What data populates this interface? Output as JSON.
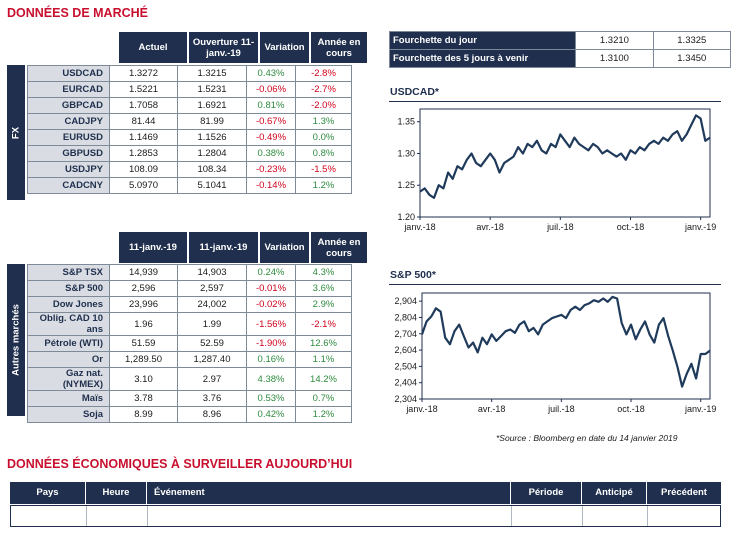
{
  "market_title": "DONNÉES DE MARCHÉ",
  "fx": {
    "side_label": "FX",
    "headers": [
      "Actuel",
      "Ouverture 11-janv.-19",
      "Variation",
      "Année en cours"
    ],
    "rows": [
      {
        "label": "USDCAD",
        "actual": "1.3272",
        "open": "1.3215",
        "variation": "0.43%",
        "ytd": "-2.8%"
      },
      {
        "label": "EURCAD",
        "actual": "1.5221",
        "open": "1.5231",
        "variation": "-0.06%",
        "ytd": "-2.7%"
      },
      {
        "label": "GBPCAD",
        "actual": "1.7058",
        "open": "1.6921",
        "variation": "0.81%",
        "ytd": "-2.0%"
      },
      {
        "label": "CADJPY",
        "actual": "81.44",
        "open": "81.99",
        "variation": "-0.67%",
        "ytd": "1.3%"
      },
      {
        "label": "EURUSD",
        "actual": "1.1469",
        "open": "1.1526",
        "variation": "-0.49%",
        "ytd": "0.0%"
      },
      {
        "label": "GBPUSD",
        "actual": "1.2853",
        "open": "1.2804",
        "variation": "0.38%",
        "ytd": "0.8%"
      },
      {
        "label": "USDJPY",
        "actual": "108.09",
        "open": "108.34",
        "variation": "-0.23%",
        "ytd": "-1.5%"
      },
      {
        "label": "CADCNY",
        "actual": "5.0970",
        "open": "5.1041",
        "variation": "-0.14%",
        "ytd": "1.2%"
      }
    ]
  },
  "markets": {
    "side_label": "Autres marchés",
    "headers": [
      "11-janv.-19",
      "11-janv.-19",
      "Variation",
      "Année en cours"
    ],
    "rows": [
      {
        "label": "S&P TSX",
        "actual": "14,939",
        "open": "14,903",
        "variation": "0.24%",
        "ytd": "4.3%"
      },
      {
        "label": "S&P 500",
        "actual": "2,596",
        "open": "2,597",
        "variation": "-0.01%",
        "ytd": "3.6%"
      },
      {
        "label": "Dow Jones",
        "actual": "23,996",
        "open": "24,002",
        "variation": "-0.02%",
        "ytd": "2.9%"
      },
      {
        "label": "Oblig. CAD 10 ans",
        "actual": "1.96",
        "open": "1.99",
        "variation": "-1.56%",
        "ytd": "-2.1%"
      },
      {
        "label": "Pétrole (WTI)",
        "actual": "51.59",
        "open": "52.59",
        "variation": "-1.90%",
        "ytd": "12.6%"
      },
      {
        "label": "Or",
        "actual": "1,289.50",
        "open": "1,287.40",
        "variation": "0.16%",
        "ytd": "1.1%"
      },
      {
        "label": "Gaz nat. (NYMEX)",
        "actual": "3.10",
        "open": "2.97",
        "variation": "4.38%",
        "ytd": "14.2%"
      },
      {
        "label": "Maïs",
        "actual": "3.78",
        "open": "3.76",
        "variation": "0.53%",
        "ytd": "0.7%"
      },
      {
        "label": "Soja",
        "actual": "8.99",
        "open": "8.96",
        "variation": "0.42%",
        "ytd": "1.2%"
      }
    ]
  },
  "range": {
    "rows": [
      {
        "label": "Fourchette du jour",
        "low": "1.3210",
        "high": "1.3325"
      },
      {
        "label": "Fourchette des 5 jours à venir",
        "low": "1.3100",
        "high": "1.3450"
      }
    ]
  },
  "chart_data": [
    {
      "type": "line",
      "title": "USDCAD*",
      "x_ticks": [
        "janv.-18",
        "avr.-18",
        "juil.-18",
        "oct.-18",
        "janv.-19"
      ],
      "y_ticks": [
        "1.35",
        "1.30",
        "1.25",
        "1.20"
      ],
      "ylim": [
        1.2,
        1.37
      ],
      "x_range": [
        0,
        12.4
      ],
      "color": "#1f3a5a",
      "x": [
        0,
        0.2,
        0.4,
        0.6,
        0.8,
        1.0,
        1.2,
        1.4,
        1.6,
        1.8,
        2.0,
        2.2,
        2.4,
        2.6,
        2.8,
        3.0,
        3.2,
        3.4,
        3.6,
        3.8,
        4.0,
        4.2,
        4.4,
        4.6,
        4.8,
        5.0,
        5.2,
        5.4,
        5.6,
        5.8,
        6.0,
        6.2,
        6.4,
        6.6,
        6.8,
        7.0,
        7.2,
        7.4,
        7.6,
        7.8,
        8.0,
        8.2,
        8.4,
        8.6,
        8.8,
        9.0,
        9.2,
        9.4,
        9.6,
        9.8,
        10.0,
        10.2,
        10.4,
        10.6,
        10.8,
        11.0,
        11.2,
        11.4,
        11.6,
        11.8,
        12.0,
        12.2,
        12.4
      ],
      "values": [
        1.24,
        1.245,
        1.235,
        1.23,
        1.25,
        1.245,
        1.27,
        1.26,
        1.28,
        1.275,
        1.29,
        1.3,
        1.285,
        1.28,
        1.29,
        1.3,
        1.29,
        1.27,
        1.285,
        1.29,
        1.295,
        1.31,
        1.3,
        1.315,
        1.31,
        1.32,
        1.305,
        1.3,
        1.315,
        1.31,
        1.33,
        1.32,
        1.31,
        1.325,
        1.315,
        1.31,
        1.305,
        1.315,
        1.31,
        1.3,
        1.305,
        1.3,
        1.295,
        1.3,
        1.29,
        1.305,
        1.3,
        1.31,
        1.305,
        1.315,
        1.32,
        1.315,
        1.325,
        1.32,
        1.33,
        1.335,
        1.32,
        1.33,
        1.345,
        1.36,
        1.355,
        1.32,
        1.325
      ]
    },
    {
      "type": "line",
      "title": "S&P 500*",
      "x_ticks": [
        "janv.-18",
        "avr.-18",
        "juil.-18",
        "oct.-18",
        "janv.-19"
      ],
      "y_ticks": [
        "2,904",
        "2,804",
        "2,704",
        "2,604",
        "2,504",
        "2,404",
        "2,304"
      ],
      "ylim": [
        2304,
        2954
      ],
      "x_range": [
        0,
        12.4
      ],
      "color": "#1f3a5a",
      "x": [
        0,
        0.2,
        0.4,
        0.6,
        0.8,
        1.0,
        1.2,
        1.4,
        1.6,
        1.8,
        2.0,
        2.2,
        2.4,
        2.6,
        2.8,
        3.0,
        3.2,
        3.4,
        3.6,
        3.8,
        4.0,
        4.2,
        4.4,
        4.6,
        4.8,
        5.0,
        5.2,
        5.4,
        5.6,
        5.8,
        6.0,
        6.2,
        6.4,
        6.6,
        6.8,
        7.0,
        7.2,
        7.4,
        7.6,
        7.8,
        8.0,
        8.2,
        8.4,
        8.6,
        8.8,
        9.0,
        9.2,
        9.4,
        9.6,
        9.8,
        10.0,
        10.2,
        10.4,
        10.6,
        10.8,
        11.0,
        11.2,
        11.4,
        11.6,
        11.8,
        12.0,
        12.2,
        12.4
      ],
      "values": [
        2700,
        2780,
        2810,
        2860,
        2840,
        2680,
        2640,
        2720,
        2760,
        2690,
        2620,
        2650,
        2590,
        2680,
        2640,
        2700,
        2660,
        2690,
        2720,
        2730,
        2710,
        2760,
        2780,
        2720,
        2740,
        2700,
        2760,
        2780,
        2800,
        2810,
        2820,
        2800,
        2850,
        2870,
        2850,
        2880,
        2890,
        2910,
        2900,
        2920,
        2900,
        2930,
        2920,
        2770,
        2700,
        2760,
        2670,
        2730,
        2780,
        2700,
        2650,
        2760,
        2800,
        2690,
        2600,
        2500,
        2380,
        2460,
        2520,
        2430,
        2580,
        2580,
        2600
      ]
    }
  ],
  "source": "*Source : Bloomberg en date du  14 janvier 2019",
  "eco_title": "DONNÉES ÉCONOMIQUES À SURVEILLER AUJOURD’HUI",
  "eco_headers": {
    "pays": "Pays",
    "heure": "Heure",
    "evenement": "Événement",
    "periode": "Période",
    "anticipe": "Anticipé",
    "precedent": "Précédent"
  }
}
